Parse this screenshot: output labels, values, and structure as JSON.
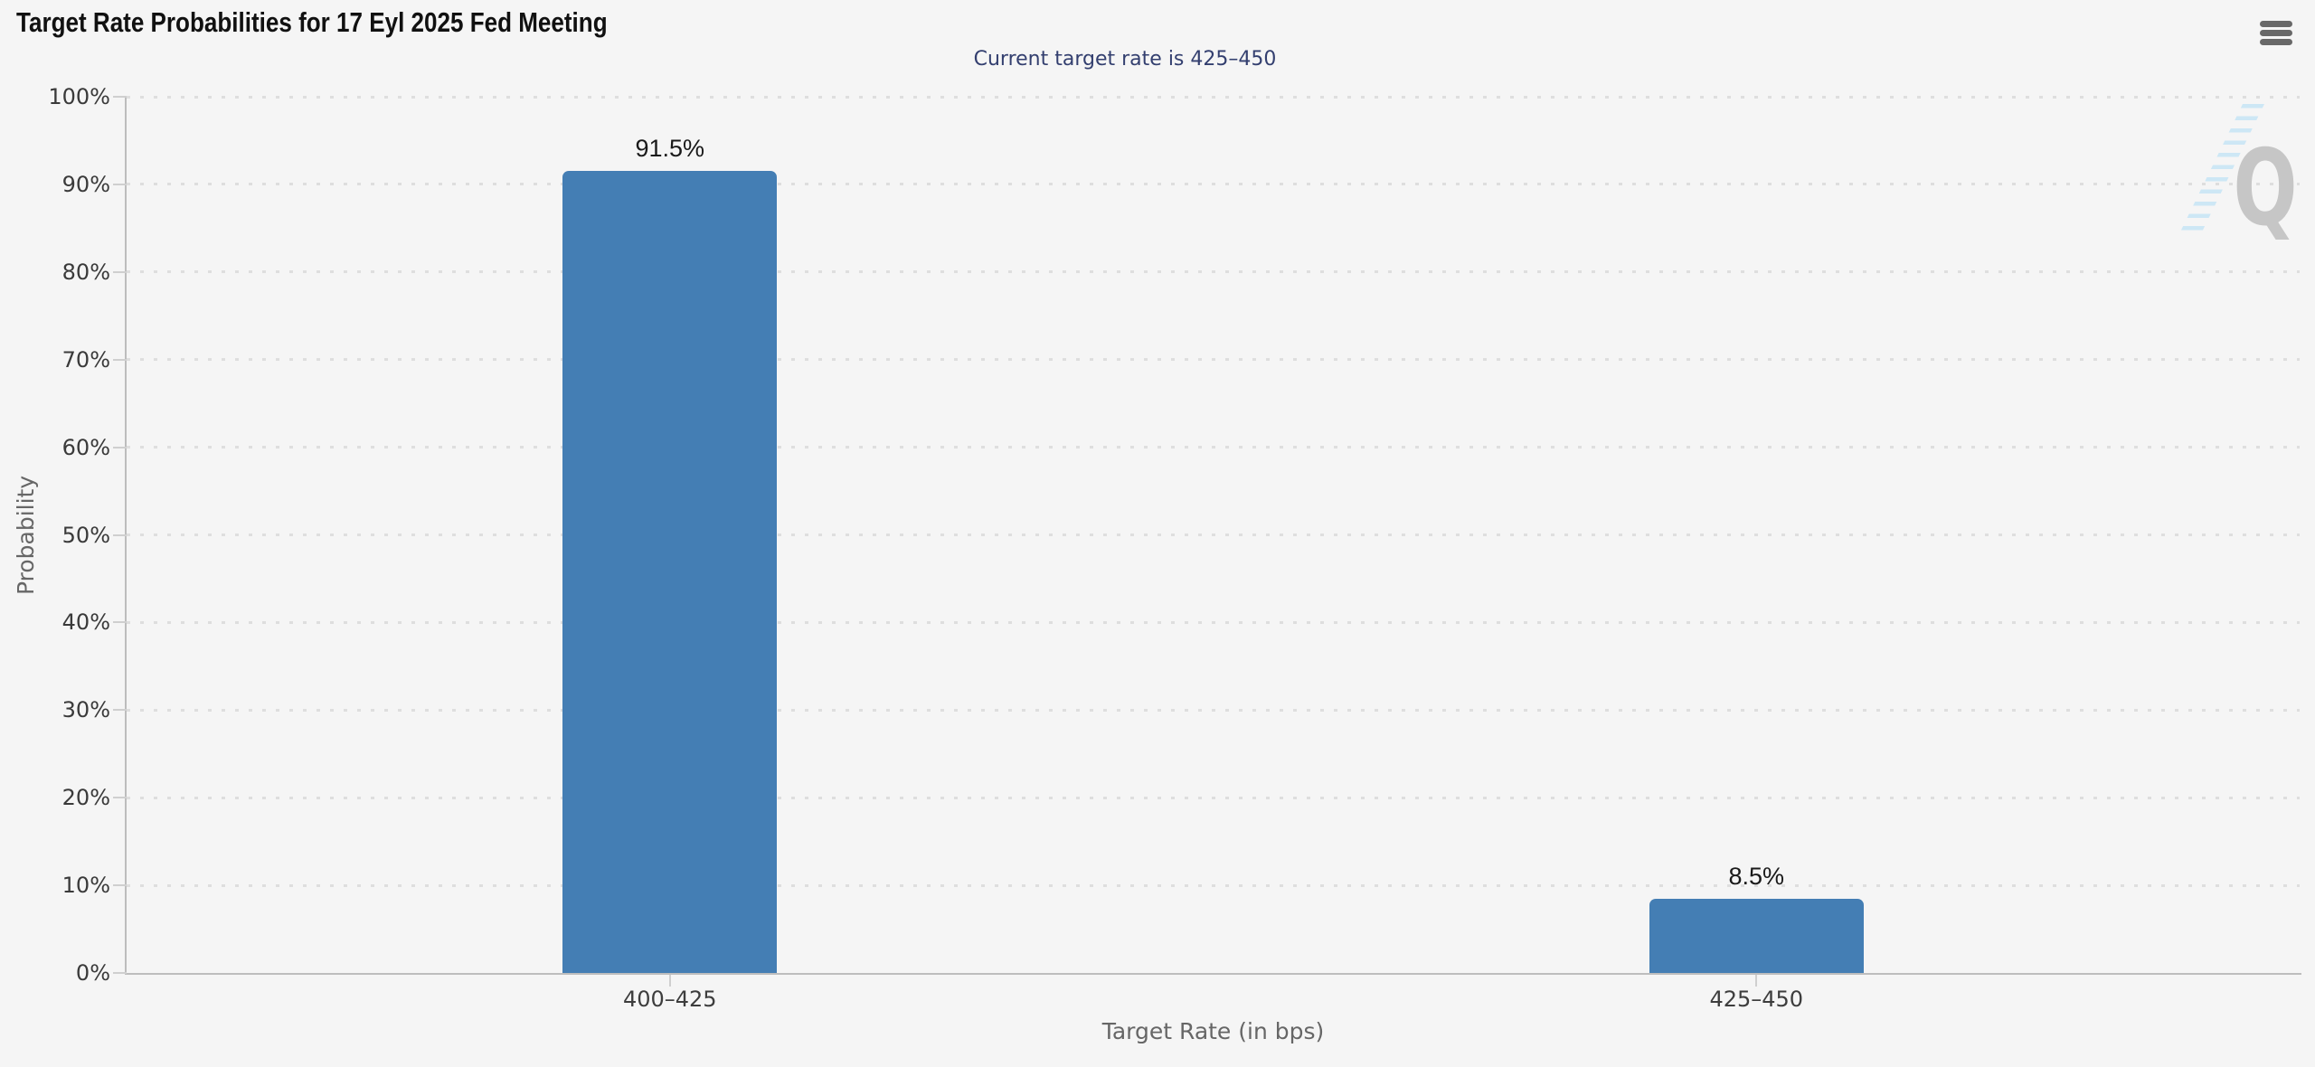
{
  "header": {
    "title": "Target Rate Probabilities for 17 Eyl 2025 Fed Meeting"
  },
  "icons": {
    "menu": "hamburger-icon",
    "watermark": "quikstrike-q-logo"
  },
  "chart_data": {
    "type": "bar",
    "title": "Target Rate Probabilities for 17 Eyl 2025 Fed Meeting",
    "subtitle": "Current target rate is 425–450",
    "categories": [
      "400–425",
      "425–450"
    ],
    "values": [
      91.5,
      8.5
    ],
    "value_labels": [
      "91.5%",
      "8.5%"
    ],
    "xlabel": "Target Rate (in bps)",
    "ylabel": "Probability",
    "ylim": [
      0,
      100
    ],
    "ytick_step": 10,
    "yticks": [
      "0%",
      "10%",
      "20%",
      "30%",
      "40%",
      "50%",
      "60%",
      "70%",
      "80%",
      "90%",
      "100%"
    ],
    "grid": "dotted-horizontal",
    "legend": "none",
    "bar_color": "#447EB4"
  },
  "watermark": {
    "letter": "Q"
  },
  "colors": {
    "page_bg": "#F5F5F5",
    "bar": "#447EB4",
    "subtitle": "#333F6F",
    "axis_line": "#BDBDBD",
    "grid_dot": "#DEDEDE",
    "tick_label": "#3A3A3A",
    "axis_title": "#666666",
    "value_label": "#1A1A1A",
    "menu_icon": "#686868",
    "watermark_q": "#C6C6C6",
    "watermark_slash": "#CDE7F5"
  }
}
